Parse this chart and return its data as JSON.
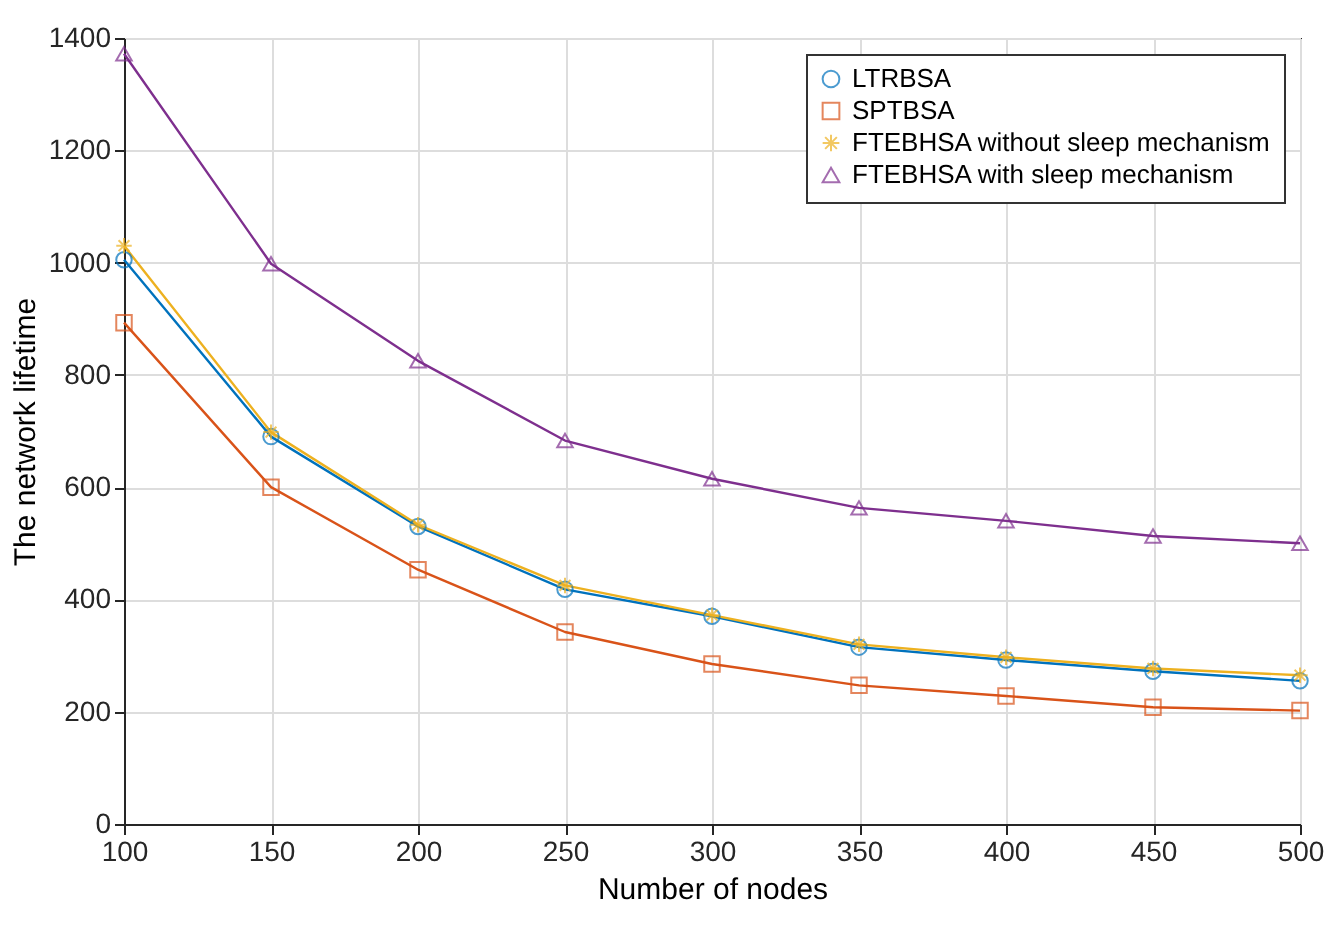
{
  "chart_data": {
    "type": "line",
    "xlabel": "Number of nodes",
    "ylabel": "The network lifetime",
    "x": [
      100,
      150,
      200,
      250,
      300,
      350,
      400,
      450,
      500
    ],
    "series": [
      {
        "name": "LTRBSA",
        "color": "#0072bd",
        "marker": "circle",
        "values": [
          1005,
          690,
          530,
          418,
          370,
          315,
          292,
          272,
          255
        ]
      },
      {
        "name": "SPTBSA",
        "color": "#d95319",
        "marker": "square",
        "values": [
          893,
          600,
          453,
          342,
          285,
          247,
          228,
          208,
          202
        ]
      },
      {
        "name": "FTEBHSA without sleep mechanism",
        "color": "#edb120",
        "marker": "cross",
        "values": [
          1030,
          698,
          533,
          425,
          372,
          320,
          297,
          277,
          265
        ]
      },
      {
        "name": "FTEBHSA with sleep mechanism",
        "color": "#7e2f8e",
        "marker": "triangle",
        "values": [
          1372,
          998,
          825,
          683,
          615,
          563,
          540,
          513,
          500
        ]
      }
    ],
    "xlim": [
      100,
      500
    ],
    "xticks": [
      100,
      150,
      200,
      250,
      300,
      350,
      400,
      450,
      500
    ],
    "ylim": [
      0,
      1400
    ],
    "yticks": [
      0,
      200,
      400,
      600,
      800,
      1000,
      1200,
      1400
    ],
    "grid": true,
    "legend": "top right",
    "line_style": "solid"
  }
}
